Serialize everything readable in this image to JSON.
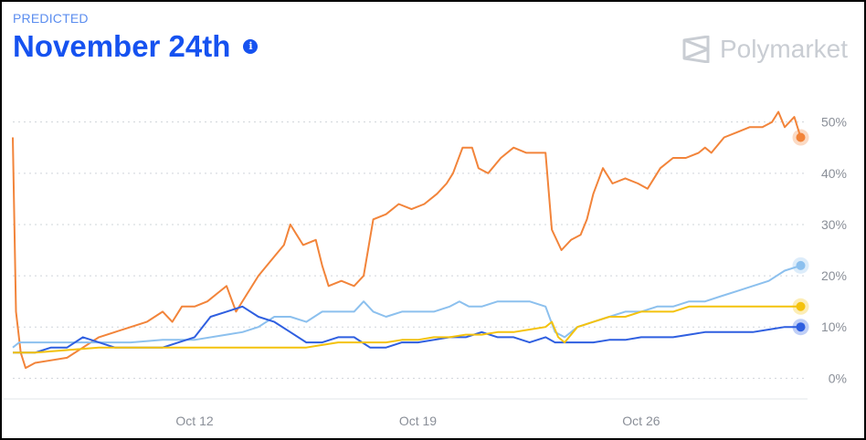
{
  "header": {
    "label": "PREDICTED",
    "title": "November 24th",
    "info_icon": "info-icon"
  },
  "brand": {
    "name": "Polymarket",
    "logo": "polymarket-logo-icon"
  },
  "colors": {
    "title": "#1652f0",
    "label": "#5b8def",
    "grid": "#cfd4da",
    "tick": "#8a8f98"
  },
  "chart_data": {
    "type": "line",
    "title": "",
    "xlabel": "",
    "ylabel": "",
    "x_tick_labels": [
      "Oct 12",
      "Oct 19",
      "Oct 26"
    ],
    "x_tick_values": [
      12,
      19,
      26
    ],
    "xlim": [
      6.3,
      31.1
    ],
    "y_tick_labels": [
      "0%",
      "10%",
      "20%",
      "30%",
      "40%",
      "50%"
    ],
    "y_tick_values": [
      0,
      10,
      20,
      30,
      40,
      50
    ],
    "ylim": [
      -3.5,
      56
    ],
    "y_axis_position": "right",
    "grid": "horizontal dotted",
    "legend": "none",
    "series": [
      {
        "color": "#f2843a",
        "end_marker": true,
        "points": [
          [
            6.3,
            47
          ],
          [
            6.4,
            13
          ],
          [
            6.55,
            5
          ],
          [
            6.7,
            2
          ],
          [
            7.0,
            3
          ],
          [
            7.5,
            3.5
          ],
          [
            8.0,
            4
          ],
          [
            8.5,
            6
          ],
          [
            9.0,
            8
          ],
          [
            9.5,
            9
          ],
          [
            10.0,
            10
          ],
          [
            10.5,
            11
          ],
          [
            11.0,
            13
          ],
          [
            11.3,
            11
          ],
          [
            11.6,
            14
          ],
          [
            12.0,
            14
          ],
          [
            12.4,
            15
          ],
          [
            12.8,
            17
          ],
          [
            13.0,
            18
          ],
          [
            13.3,
            13
          ],
          [
            13.6,
            16
          ],
          [
            14.0,
            20
          ],
          [
            14.4,
            23
          ],
          [
            14.8,
            26
          ],
          [
            15.0,
            30
          ],
          [
            15.2,
            28
          ],
          [
            15.4,
            26
          ],
          [
            15.8,
            27
          ],
          [
            16.0,
            22
          ],
          [
            16.2,
            18
          ],
          [
            16.6,
            19
          ],
          [
            17.0,
            18
          ],
          [
            17.3,
            20
          ],
          [
            17.6,
            31
          ],
          [
            18.0,
            32
          ],
          [
            18.4,
            34
          ],
          [
            18.8,
            33
          ],
          [
            19.2,
            34
          ],
          [
            19.6,
            36
          ],
          [
            19.9,
            38
          ],
          [
            20.1,
            40
          ],
          [
            20.4,
            45
          ],
          [
            20.7,
            45
          ],
          [
            20.9,
            41
          ],
          [
            21.2,
            40
          ],
          [
            21.6,
            43
          ],
          [
            22.0,
            45
          ],
          [
            22.4,
            44
          ],
          [
            22.8,
            44
          ],
          [
            23.0,
            44
          ],
          [
            23.2,
            29
          ],
          [
            23.5,
            25
          ],
          [
            23.8,
            27
          ],
          [
            24.1,
            28
          ],
          [
            24.3,
            31
          ],
          [
            24.5,
            36
          ],
          [
            24.8,
            41
          ],
          [
            25.1,
            38
          ],
          [
            25.5,
            39
          ],
          [
            25.9,
            38
          ],
          [
            26.2,
            37
          ],
          [
            26.6,
            41
          ],
          [
            27.0,
            43
          ],
          [
            27.4,
            43
          ],
          [
            27.8,
            44
          ],
          [
            28.0,
            45
          ],
          [
            28.2,
            44
          ],
          [
            28.6,
            47
          ],
          [
            29.0,
            48
          ],
          [
            29.4,
            49
          ],
          [
            29.8,
            49
          ],
          [
            30.1,
            50
          ],
          [
            30.3,
            52
          ],
          [
            30.5,
            49
          ],
          [
            30.8,
            51
          ],
          [
            31.0,
            47
          ]
        ]
      },
      {
        "color": "#8cc0ee",
        "end_marker": true,
        "points": [
          [
            6.3,
            6
          ],
          [
            6.5,
            7
          ],
          [
            7.0,
            7
          ],
          [
            8.0,
            7
          ],
          [
            9.0,
            7
          ],
          [
            10.0,
            7
          ],
          [
            11.0,
            7.5
          ],
          [
            12.0,
            7.5
          ],
          [
            13.0,
            8.5
          ],
          [
            13.5,
            9
          ],
          [
            14.0,
            10
          ],
          [
            14.5,
            12
          ],
          [
            15.0,
            12
          ],
          [
            15.5,
            11
          ],
          [
            16.0,
            13
          ],
          [
            16.5,
            13
          ],
          [
            17.0,
            13
          ],
          [
            17.3,
            15
          ],
          [
            17.6,
            13
          ],
          [
            18.0,
            12
          ],
          [
            18.5,
            13
          ],
          [
            19.0,
            13
          ],
          [
            19.5,
            13
          ],
          [
            20.0,
            14
          ],
          [
            20.3,
            15
          ],
          [
            20.6,
            14
          ],
          [
            21.0,
            14
          ],
          [
            21.5,
            15
          ],
          [
            22.0,
            15
          ],
          [
            22.5,
            15
          ],
          [
            23.0,
            14
          ],
          [
            23.3,
            9
          ],
          [
            23.6,
            8
          ],
          [
            24.0,
            10
          ],
          [
            24.5,
            11
          ],
          [
            25.0,
            12
          ],
          [
            25.5,
            13
          ],
          [
            26.0,
            13
          ],
          [
            26.5,
            14
          ],
          [
            27.0,
            14
          ],
          [
            27.5,
            15
          ],
          [
            28.0,
            15
          ],
          [
            28.5,
            16
          ],
          [
            29.0,
            17
          ],
          [
            29.5,
            18
          ],
          [
            30.0,
            19
          ],
          [
            30.5,
            21
          ],
          [
            31.0,
            22
          ]
        ]
      },
      {
        "color": "#2f5fe0",
        "end_marker": true,
        "points": [
          [
            6.3,
            5
          ],
          [
            7.0,
            5
          ],
          [
            7.5,
            6
          ],
          [
            8.0,
            6
          ],
          [
            8.5,
            8
          ],
          [
            9.0,
            7
          ],
          [
            9.5,
            6
          ],
          [
            10.0,
            6
          ],
          [
            11.0,
            6
          ],
          [
            11.5,
            7
          ],
          [
            12.0,
            8
          ],
          [
            12.5,
            12
          ],
          [
            13.0,
            13
          ],
          [
            13.5,
            14
          ],
          [
            14.0,
            12
          ],
          [
            14.5,
            11
          ],
          [
            15.0,
            9
          ],
          [
            15.5,
            7
          ],
          [
            16.0,
            7
          ],
          [
            16.5,
            8
          ],
          [
            17.0,
            8
          ],
          [
            17.5,
            6
          ],
          [
            18.0,
            6
          ],
          [
            18.5,
            7
          ],
          [
            19.0,
            7
          ],
          [
            19.5,
            7.5
          ],
          [
            20.0,
            8
          ],
          [
            20.5,
            8
          ],
          [
            21.0,
            9
          ],
          [
            21.5,
            8
          ],
          [
            22.0,
            8
          ],
          [
            22.5,
            7
          ],
          [
            23.0,
            8
          ],
          [
            23.3,
            7
          ],
          [
            23.6,
            7
          ],
          [
            24.0,
            7
          ],
          [
            24.5,
            7
          ],
          [
            25.0,
            7.5
          ],
          [
            25.5,
            7.5
          ],
          [
            26.0,
            8
          ],
          [
            26.5,
            8
          ],
          [
            27.0,
            8
          ],
          [
            27.5,
            8.5
          ],
          [
            28.0,
            9
          ],
          [
            28.5,
            9
          ],
          [
            29.0,
            9
          ],
          [
            29.5,
            9
          ],
          [
            30.0,
            9.5
          ],
          [
            30.5,
            10
          ],
          [
            31.0,
            10
          ]
        ]
      },
      {
        "color": "#f4c20d",
        "end_marker": true,
        "points": [
          [
            6.3,
            5
          ],
          [
            7.0,
            5
          ],
          [
            8.0,
            5.5
          ],
          [
            9.0,
            6
          ],
          [
            10.0,
            6
          ],
          [
            11.0,
            6
          ],
          [
            12.0,
            6
          ],
          [
            13.0,
            6
          ],
          [
            14.0,
            6
          ],
          [
            15.0,
            6
          ],
          [
            15.5,
            6
          ],
          [
            16.0,
            6.5
          ],
          [
            16.5,
            7
          ],
          [
            17.0,
            7
          ],
          [
            17.5,
            7
          ],
          [
            18.0,
            7
          ],
          [
            18.5,
            7.5
          ],
          [
            19.0,
            7.5
          ],
          [
            19.5,
            8
          ],
          [
            20.0,
            8
          ],
          [
            20.5,
            8.5
          ],
          [
            21.0,
            8.5
          ],
          [
            21.5,
            9
          ],
          [
            22.0,
            9
          ],
          [
            22.5,
            9.5
          ],
          [
            23.0,
            10
          ],
          [
            23.2,
            11
          ],
          [
            23.4,
            8
          ],
          [
            23.6,
            7
          ],
          [
            24.0,
            10
          ],
          [
            24.5,
            11
          ],
          [
            25.0,
            12
          ],
          [
            25.5,
            12
          ],
          [
            26.0,
            13
          ],
          [
            26.5,
            13
          ],
          [
            27.0,
            13
          ],
          [
            27.5,
            14
          ],
          [
            28.0,
            14
          ],
          [
            28.5,
            14
          ],
          [
            29.0,
            14
          ],
          [
            29.5,
            14
          ],
          [
            30.0,
            14
          ],
          [
            30.5,
            14
          ],
          [
            31.0,
            14
          ]
        ]
      }
    ]
  }
}
